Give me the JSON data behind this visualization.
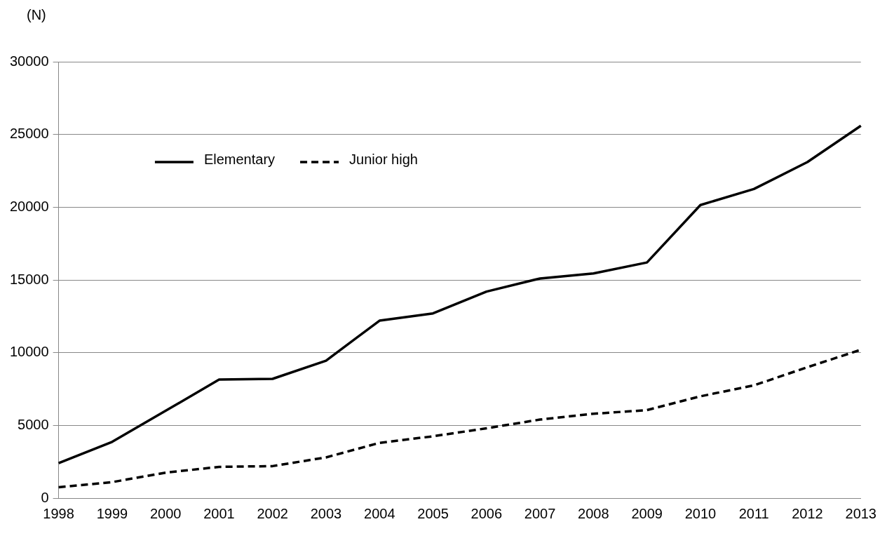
{
  "chart_data": {
    "type": "line",
    "ylabel": "(N)",
    "categories": [
      "1998",
      "1999",
      "2000",
      "2001",
      "2002",
      "2003",
      "2004",
      "2005",
      "2006",
      "2007",
      "2008",
      "2009",
      "2010",
      "2011",
      "2012",
      "2013"
    ],
    "series": [
      {
        "name": "Elementary",
        "color": "#000000",
        "line_style": "solid",
        "values": [
          2400,
          3870,
          6000,
          8150,
          8200,
          9450,
          12200,
          12700,
          14200,
          15100,
          15450,
          16200,
          20150,
          21250,
          23100,
          25600
        ]
      },
      {
        "name": "Junior high",
        "color": "#000000",
        "line_style": "dashed",
        "values": [
          750,
          1100,
          1750,
          2150,
          2200,
          2800,
          3800,
          4250,
          4800,
          5400,
          5800,
          6050,
          7000,
          7750,
          9000,
          10200
        ]
      }
    ],
    "ylim": [
      0,
      30000
    ],
    "yticks": [
      0,
      5000,
      10000,
      15000,
      20000,
      25000,
      30000
    ],
    "grid": "y",
    "legend": "top left",
    "marker": "none"
  }
}
